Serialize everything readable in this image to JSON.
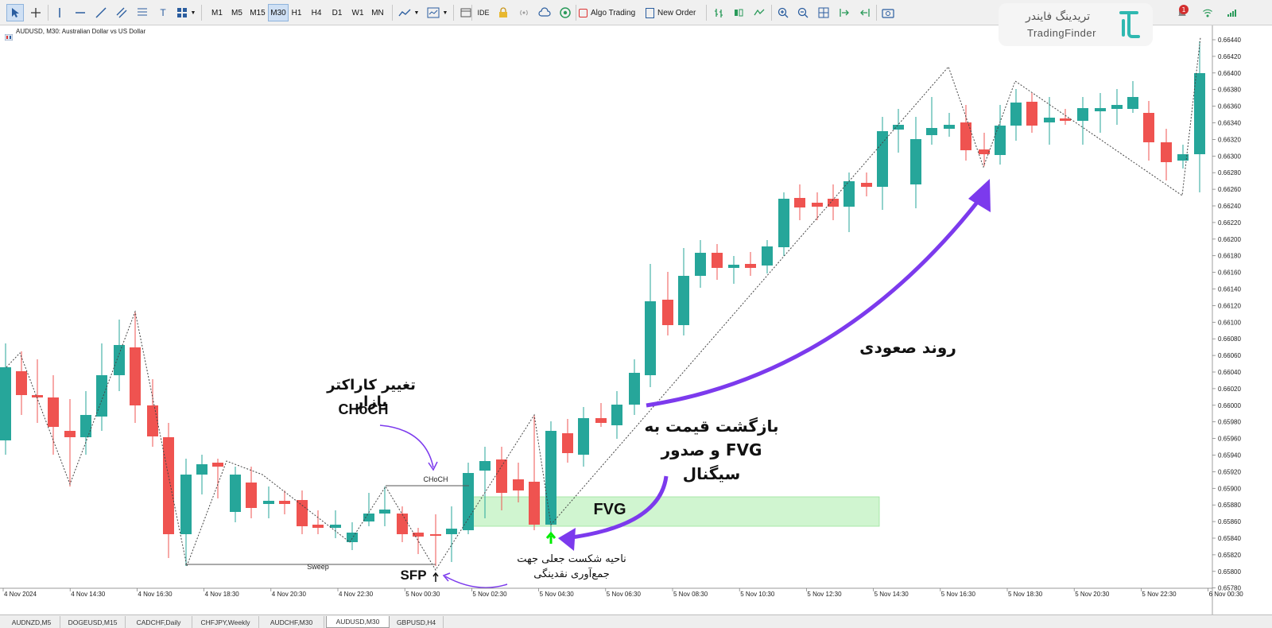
{
  "toolbar": {
    "timeframes": [
      "M1",
      "M5",
      "M15",
      "M30",
      "H1",
      "H4",
      "D1",
      "W1",
      "MN"
    ],
    "active_timeframe": "M30",
    "ide_label": "IDE",
    "algo_trading_label": "Algo Trading",
    "new_order_label": "New Order"
  },
  "logo": {
    "persian": "تریدینگ فایندر",
    "english": "TradingFinder"
  },
  "badges": {
    "notifications": "1"
  },
  "chart": {
    "title": "AUDUSD, M30:  Australian Dollar vs US Dollar",
    "price_labels": [
      "0.66440",
      "0.66420",
      "0.66400",
      "0.66380",
      "0.66360",
      "0.66340",
      "0.66320",
      "0.66300",
      "0.66280",
      "0.66260",
      "0.66240",
      "0.66220",
      "0.66200",
      "0.66180",
      "0.66160",
      "0.66140",
      "0.66120",
      "0.66100",
      "0.66080",
      "0.66060",
      "0.66040",
      "0.66020",
      "0.66000",
      "0.65980",
      "0.65960",
      "0.65940",
      "0.65920",
      "0.65900",
      "0.65880",
      "0.65860",
      "0.65840",
      "0.65820",
      "0.65800",
      "0.65780"
    ],
    "time_labels": [
      "4 Nov 2024",
      "4 Nov 14:30",
      "4 Nov 16:30",
      "4 Nov 18:30",
      "4 Nov 20:30",
      "4 Nov 22:30",
      "5 Nov 00:30",
      "5 Nov 02:30",
      "5 Nov 04:30",
      "5 Nov 06:30",
      "5 Nov 08:30",
      "5 Nov 10:30",
      "5 Nov 12:30",
      "5 Nov 14:30",
      "5 Nov 16:30",
      "5 Nov 18:30",
      "5 Nov 20:30",
      "5 Nov 22:30",
      "6 Nov 00:30"
    ],
    "colors": {
      "bull": "#26a69a",
      "bear": "#ef5350",
      "fvg": "#ccf5cc",
      "annotation": "#7c3aed",
      "signal_arrow": "#00ee00"
    }
  },
  "annotations": {
    "choch_title": "تغییر کاراکتر بازار",
    "choch_label": "CHoCH",
    "choch_small": "CHoCH",
    "sweep": "Sweep",
    "sfp": "SFP",
    "fvg": "FVG",
    "return_line1": "بازگشت قیمت به",
    "return_line2": "FVG  و صدور",
    "return_line3": "سیگنال",
    "uptrend": "روند صعودی",
    "fakeout_line1": "ناحیه شکست جعلی جهت",
    "fakeout_line2": "جمع‌آوری نقدینگی"
  },
  "bottom_tabs": [
    "AUDNZD,M5",
    "DOGEUSD,M15",
    "CADCHF,Daily",
    "CHFJPY,Weekly",
    "AUDCHF,M30",
    "AUDUSD,M30",
    "GBPUSD,H4"
  ],
  "active_tab": "AUDUSD,M30"
}
